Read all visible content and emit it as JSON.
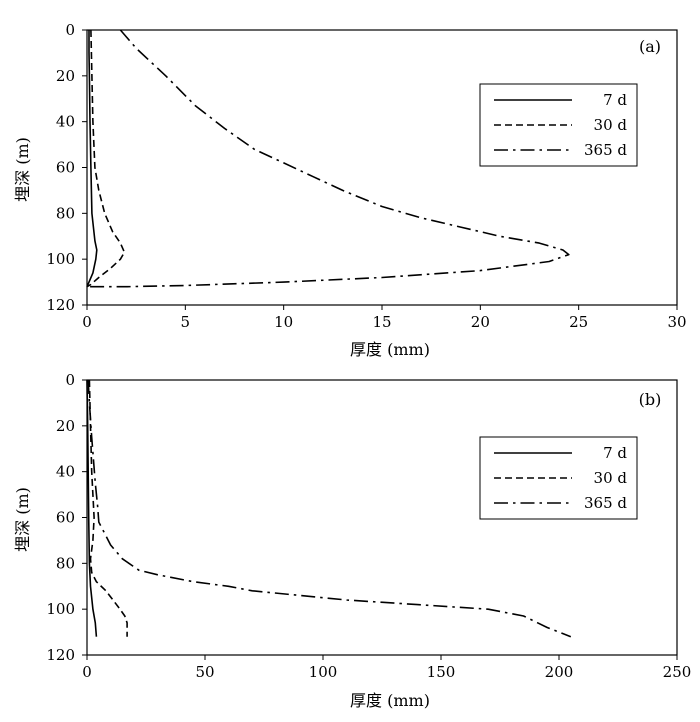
{
  "chart_data": [
    {
      "type": "line",
      "panel_label": "(a)",
      "xlabel": "厚度 (mm)",
      "ylabel": "埋深 (m)",
      "xlim": [
        0,
        30
      ],
      "ylim": [
        0,
        120
      ],
      "y_inverted": true,
      "x_ticks": [
        0,
        5,
        10,
        15,
        20,
        25,
        30
      ],
      "y_ticks": [
        0,
        20,
        40,
        60,
        80,
        100,
        120
      ],
      "legend_position": "upper-right",
      "series": [
        {
          "name": "7 d",
          "style": "solid",
          "points": [
            [
              0.1,
              0
            ],
            [
              0.1,
              10
            ],
            [
              0.12,
              20
            ],
            [
              0.15,
              40
            ],
            [
              0.2,
              60
            ],
            [
              0.25,
              80
            ],
            [
              0.4,
              92
            ],
            [
              0.5,
              96
            ],
            [
              0.45,
              100
            ],
            [
              0.3,
              106
            ],
            [
              0.1,
              110
            ],
            [
              0,
              112
            ]
          ]
        },
        {
          "name": "30 d",
          "style": "dashed",
          "points": [
            [
              0.2,
              0
            ],
            [
              0.25,
              20
            ],
            [
              0.3,
              40
            ],
            [
              0.4,
              60
            ],
            [
              0.6,
              70
            ],
            [
              0.9,
              80
            ],
            [
              1.3,
              88
            ],
            [
              1.7,
              93
            ],
            [
              1.9,
              97
            ],
            [
              1.7,
              100
            ],
            [
              1.2,
              104
            ],
            [
              0.6,
              108
            ],
            [
              0.2,
              111
            ],
            [
              0,
              112
            ]
          ]
        },
        {
          "name": "365 d",
          "style": "dashdot",
          "points": [
            [
              1.7,
              0
            ],
            [
              2.5,
              8
            ],
            [
              4.0,
              20
            ],
            [
              5.5,
              33
            ],
            [
              7.0,
              43
            ],
            [
              8.5,
              52
            ],
            [
              10.0,
              58
            ],
            [
              11.5,
              64
            ],
            [
              13.0,
              70
            ],
            [
              15.0,
              77
            ],
            [
              17.0,
              82
            ],
            [
              19.0,
              86
            ],
            [
              21.0,
              90
            ],
            [
              23.0,
              93
            ],
            [
              24.2,
              96
            ],
            [
              24.5,
              98
            ],
            [
              23.5,
              101
            ],
            [
              20.0,
              105
            ],
            [
              15.0,
              108
            ],
            [
              10.0,
              110
            ],
            [
              5.0,
              111.5
            ],
            [
              2.0,
              112
            ],
            [
              0,
              112
            ]
          ]
        }
      ]
    },
    {
      "type": "line",
      "panel_label": "(b)",
      "xlabel": "厚度 (mm)",
      "ylabel": "埋深 (m)",
      "xlim": [
        0,
        250
      ],
      "ylim": [
        0,
        120
      ],
      "y_inverted": true,
      "x_ticks": [
        0,
        50,
        100,
        150,
        200,
        250
      ],
      "y_ticks": [
        0,
        20,
        40,
        60,
        80,
        100,
        120
      ],
      "legend_position": "upper-right",
      "series": [
        {
          "name": "7 d",
          "style": "solid",
          "points": [
            [
              0,
              0
            ],
            [
              0.3,
              20
            ],
            [
              0.5,
              40
            ],
            [
              0.7,
              60
            ],
            [
              1.0,
              80
            ],
            [
              1.5,
              90
            ],
            [
              2.5,
              100
            ],
            [
              3.5,
              106
            ],
            [
              4.0,
              112
            ]
          ]
        },
        {
          "name": "30 d",
          "style": "dashed",
          "points": [
            [
              1.0,
              0
            ],
            [
              1.5,
              20
            ],
            [
              2.0,
              40
            ],
            [
              3.0,
              60
            ],
            [
              2.5,
              70
            ],
            [
              1.5,
              78
            ],
            [
              2.0,
              84
            ],
            [
              4.0,
              88
            ],
            [
              8.0,
              92
            ],
            [
              11.0,
              96
            ],
            [
              14.0,
              100
            ],
            [
              16.0,
              103
            ],
            [
              17.0,
              106
            ],
            [
              17.0,
              112
            ]
          ]
        },
        {
          "name": "365 d",
          "style": "dashdot",
          "points": [
            [
              0.5,
              0
            ],
            [
              1.0,
              10
            ],
            [
              2.0,
              25
            ],
            [
              3.5,
              45
            ],
            [
              4.5,
              55
            ],
            [
              5.0,
              62
            ],
            [
              8.0,
              68
            ],
            [
              10.0,
              72
            ],
            [
              15.0,
              78
            ],
            [
              22.0,
              83
            ],
            [
              30.0,
              85
            ],
            [
              45.0,
              88
            ],
            [
              60.0,
              90
            ],
            [
              70.0,
              92
            ],
            [
              90.0,
              94
            ],
            [
              110.0,
              96
            ],
            [
              140.0,
              98
            ],
            [
              170.0,
              100
            ],
            [
              185.0,
              103
            ],
            [
              195.0,
              108
            ],
            [
              205.0,
              112
            ]
          ]
        }
      ]
    }
  ]
}
